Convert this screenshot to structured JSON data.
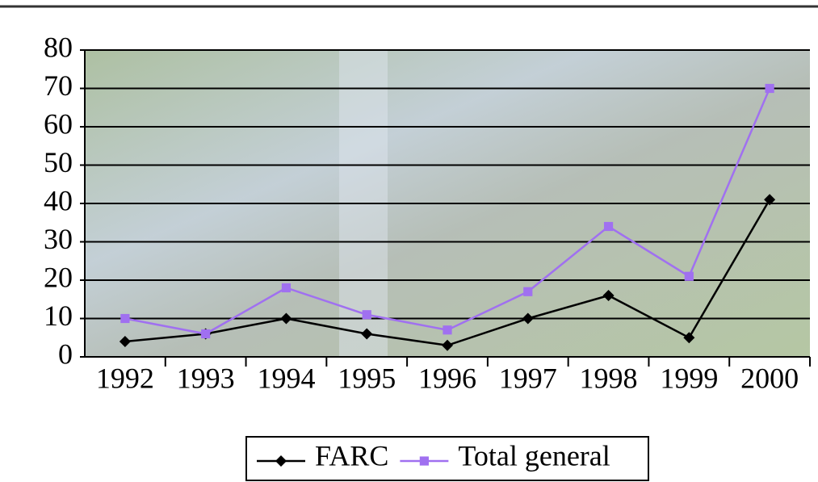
{
  "chart_data": {
    "type": "line",
    "categories": [
      "1992",
      "1993",
      "1994",
      "1995",
      "1996",
      "1997",
      "1998",
      "1999",
      "2000"
    ],
    "series": [
      {
        "name": "FARC",
        "color": "#000000",
        "marker": "diamond",
        "values": [
          4,
          6,
          10,
          6,
          3,
          10,
          16,
          5,
          41
        ]
      },
      {
        "name": "Total general",
        "color": "#a070f0",
        "marker": "square",
        "values": [
          10,
          6,
          18,
          11,
          7,
          17,
          34,
          21,
          70
        ]
      }
    ],
    "ylim": [
      0,
      80
    ],
    "yticks": [
      0,
      10,
      20,
      30,
      40,
      50,
      60,
      70,
      80
    ],
    "grid": true,
    "legend": "bottom"
  }
}
